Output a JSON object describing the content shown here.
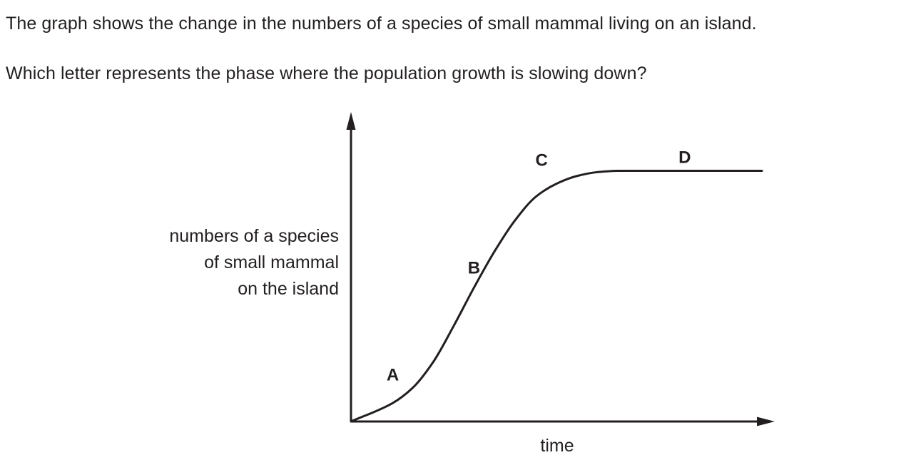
{
  "question": {
    "line1": "The graph shows the change in the numbers of a species of small mammal living on an island.",
    "line2": "Which letter represents the phase where the population growth is slowing down?"
  },
  "chart_data": {
    "type": "line",
    "title": "",
    "xlabel": "time",
    "ylabel": [
      "numbers of a species",
      "of small mammal",
      "on the island"
    ],
    "ticks": "none",
    "grid": false,
    "curve": "sigmoid",
    "series": [
      {
        "x": [
          0,
          0.1,
          0.15,
          0.2,
          0.25,
          0.3,
          0.35,
          0.4,
          0.45,
          0.5,
          0.55,
          0.6,
          0.65,
          0.7,
          0.8,
          0.9,
          1.0
        ],
        "values": [
          0,
          0.07,
          0.13,
          0.23,
          0.37,
          0.52,
          0.66,
          0.78,
          0.87,
          0.92,
          0.95,
          0.965,
          0.97,
          0.97,
          0.97,
          0.97,
          0.97
        ]
      }
    ],
    "phase_labels": [
      {
        "label": "A",
        "x": 0.1,
        "y": 0.07
      },
      {
        "label": "B",
        "x": 0.315,
        "y": 0.57
      },
      {
        "label": "C",
        "x": 0.49,
        "y": 0.92
      },
      {
        "label": "D",
        "x": 0.8,
        "y": 0.97
      }
    ],
    "line_color": "#231f20"
  }
}
